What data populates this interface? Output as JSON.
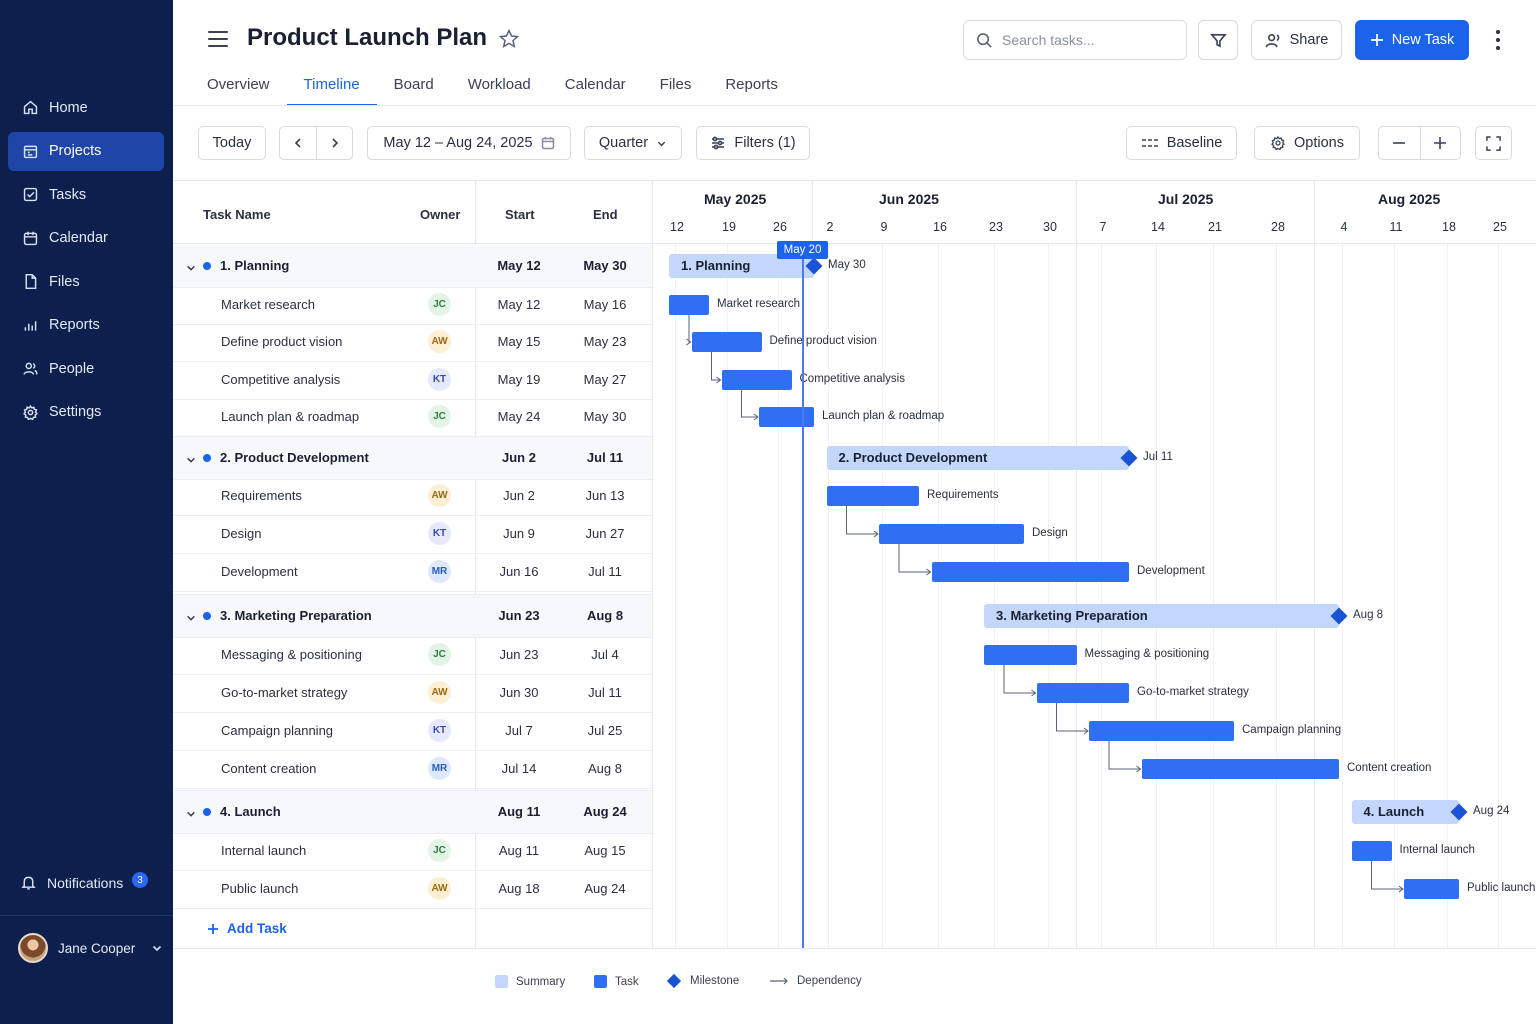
{
  "sidebar": {
    "items": [
      {
        "label": "Home",
        "icon": "home-icon"
      },
      {
        "label": "Projects",
        "icon": "projects-icon",
        "active": true
      },
      {
        "label": "Tasks",
        "icon": "tasks-icon"
      },
      {
        "label": "Calendar",
        "icon": "calendar-icon"
      },
      {
        "label": "Files",
        "icon": "files-icon"
      },
      {
        "label": "Reports",
        "icon": "reports-icon"
      },
      {
        "label": "People",
        "icon": "people-icon"
      },
      {
        "label": "Settings",
        "icon": "settings-icon"
      }
    ],
    "notifications": {
      "label": "Notifications",
      "count": "3"
    },
    "user": {
      "name": "Jane Cooper"
    }
  },
  "header": {
    "title": "Product Launch Plan",
    "search_placeholder": "Search tasks...",
    "share_label": "Share",
    "new_task_label": "New Task"
  },
  "tabs": [
    "Overview",
    "Timeline",
    "Board",
    "Workload",
    "Calendar",
    "Files",
    "Reports"
  ],
  "active_tab": "Timeline",
  "toolbar": {
    "today_label": "Today",
    "date_range": "May 12 – Aug 24, 2025",
    "view_select": "Quarter",
    "filters_label": "Filters (1)",
    "baseline_label": "Baseline",
    "options_label": "Options"
  },
  "table": {
    "headers": {
      "task": "Task Name",
      "owner": "Owner",
      "start": "Start",
      "end": "End"
    },
    "add_task_label": "Add Task"
  },
  "tasks": [
    {
      "type": "group",
      "name": "1. Planning",
      "bar_label": "1.  Planning",
      "start": "May 12",
      "end": "May 30",
      "milestone_label": "May 30"
    },
    {
      "type": "task",
      "name": "Market research",
      "owner": "JC",
      "start": "May 12",
      "end": "May 16"
    },
    {
      "type": "task",
      "name": "Define product vision",
      "owner": "AW",
      "start": "May 15",
      "end": "May 23"
    },
    {
      "type": "task",
      "name": "Competitive analysis",
      "owner": "KT",
      "start": "May 19",
      "end": "May 27"
    },
    {
      "type": "task",
      "name": "Launch plan & roadmap",
      "owner": "JC",
      "start": "May 24",
      "end": "May 30"
    },
    {
      "type": "group",
      "name": "2. Product Development",
      "bar_label": "2.  Product Development",
      "start": "Jun 2",
      "end": "Jul 11",
      "milestone_label": "Jul 11"
    },
    {
      "type": "task",
      "name": "Requirements",
      "owner": "AW",
      "start": "Jun 2",
      "end": "Jun 13"
    },
    {
      "type": "task",
      "name": "Design",
      "owner": "KT",
      "start": "Jun 9",
      "end": "Jun 27"
    },
    {
      "type": "task",
      "name": "Development",
      "owner": "MR",
      "start": "Jun 16",
      "end": "Jul 11"
    },
    {
      "type": "group",
      "name": "3. Marketing Preparation",
      "bar_label": "3.  Marketing Preparation",
      "start": "Jun 23",
      "end": "Aug 8",
      "milestone_label": "Aug 8"
    },
    {
      "type": "task",
      "name": "Messaging & positioning",
      "owner": "JC",
      "start": "Jun 23",
      "end": "Jul 4"
    },
    {
      "type": "task",
      "name": "Go-to-market strategy",
      "owner": "AW",
      "start": "Jun 30",
      "end": "Jul 11"
    },
    {
      "type": "task",
      "name": "Campaign planning",
      "owner": "KT",
      "start": "Jul 7",
      "end": "Jul 25"
    },
    {
      "type": "task",
      "name": "Content creation",
      "owner": "MR",
      "start": "Jul 14",
      "end": "Aug 8"
    },
    {
      "type": "group",
      "name": "4. Launch",
      "bar_label": "4.  Launch",
      "start": "Aug 11",
      "end": "Aug 24",
      "milestone_label": "Aug 24"
    },
    {
      "type": "task",
      "name": "Internal launch",
      "owner": "JC",
      "start": "Aug 11",
      "end": "Aug 15"
    },
    {
      "type": "task",
      "name": "Public launch",
      "owner": "AW",
      "start": "Aug 18",
      "end": "Aug 24"
    }
  ],
  "timeline": {
    "months": [
      "May 2025",
      "Jun 2025",
      "Jul 2025",
      "Aug 2025"
    ],
    "weeks": [
      "12",
      "19",
      "26",
      "2",
      "9",
      "16",
      "23",
      "30",
      "7",
      "14",
      "21",
      "28",
      "4",
      "11",
      "18",
      "25"
    ],
    "today_label": "May 20"
  },
  "legend": [
    "Summary",
    "Task",
    "Milestone",
    "Dependency"
  ],
  "colors": {
    "sidebar": "#0d1f4d",
    "accent": "#1a63ea",
    "summary_bar": "#c3d6fb",
    "task_bar": "#2f6ff2",
    "milestone": "#1a52d6"
  }
}
